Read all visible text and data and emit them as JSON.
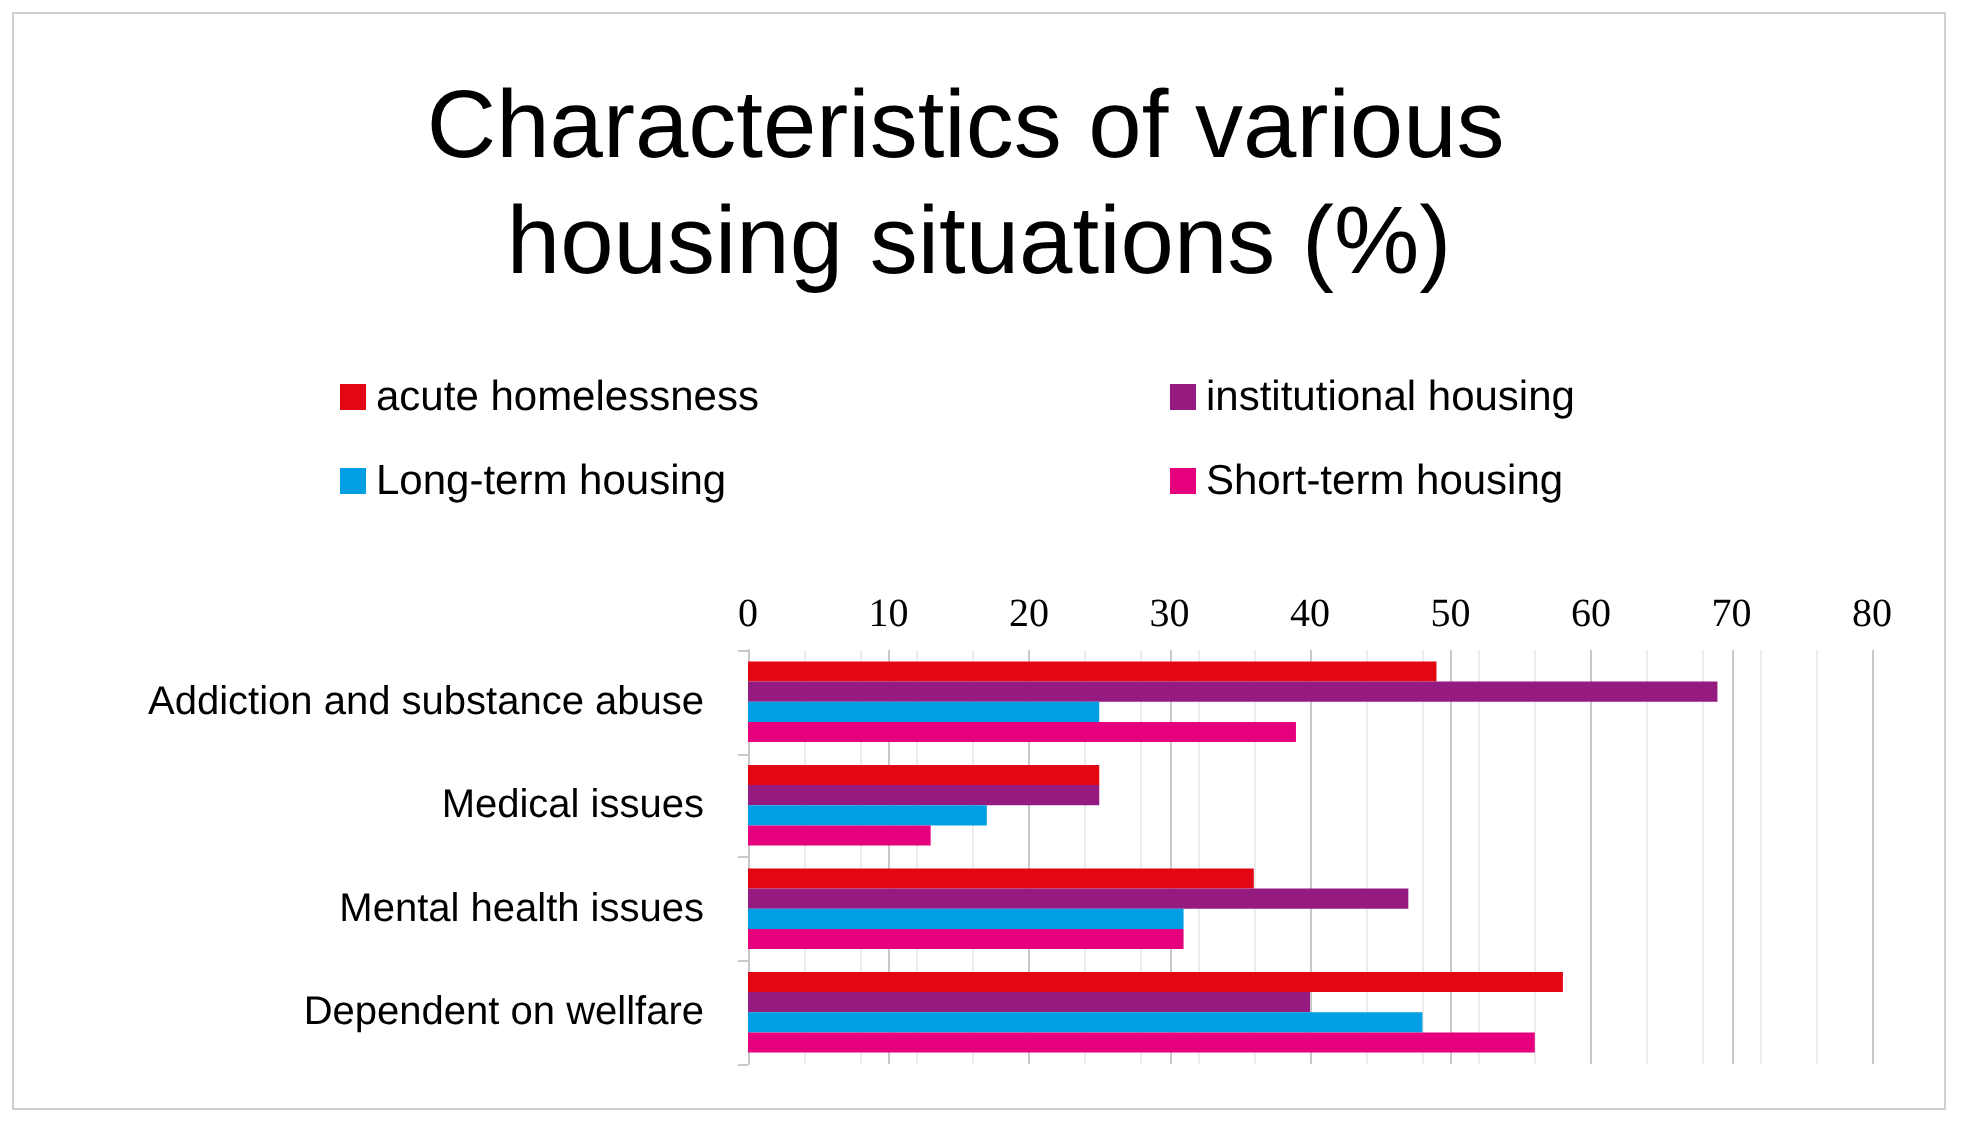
{
  "chart_data": {
    "type": "bar",
    "orientation": "horizontal",
    "title": "Characteristics of various housing situations (%)",
    "categories": [
      "Addiction and substance abuse",
      "Medical issues",
      "Mental health issues",
      "Dependent on wellfare"
    ],
    "series": [
      {
        "name": "acute homelessness",
        "color": "#e30613",
        "values": [
          49,
          25,
          36,
          58
        ]
      },
      {
        "name": "institutional housing",
        "color": "#951b81",
        "values": [
          69,
          25,
          47,
          40
        ]
      },
      {
        "name": "Long-term housing",
        "color": "#009fe3",
        "values": [
          25,
          17,
          31,
          48
        ]
      },
      {
        "name": "Short-term housing",
        "color": "#e6007e",
        "values": [
          39,
          13,
          31,
          56
        ]
      }
    ],
    "xlim": [
      0,
      80
    ],
    "xticks": [
      0,
      10,
      20,
      30,
      40,
      50,
      60,
      70,
      80
    ],
    "grid": "x",
    "legend": "top"
  }
}
